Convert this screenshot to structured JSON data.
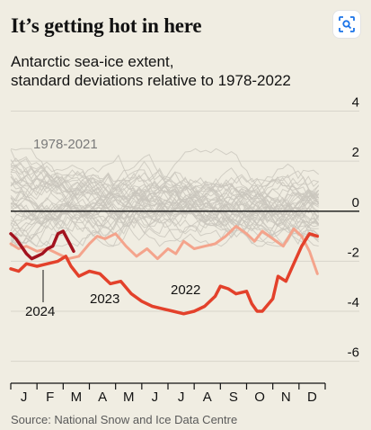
{
  "header": {
    "title": "It’s getting hot in here",
    "subtitle_line1": "Antarctic sea-ice extent,",
    "subtitle_line2": "standard deviations relative to 1978-2022"
  },
  "footer": {
    "source": "Source: National Snow and Ice Data Centre"
  },
  "toolbar": {
    "icon": "lens-search-icon"
  },
  "colors": {
    "background": "#f0ede2",
    "history": "#c9c6bd",
    "y2022": "#f4a48c",
    "y2023": "#e3412b",
    "y2024": "#a3131f",
    "zero_line": "#121212"
  },
  "chart_data": {
    "type": "line",
    "title": "It’s getting hot in here",
    "subtitle": "Antarctic sea-ice extent, standard deviations relative to 1978-2022",
    "ylim": [
      -6.3,
      4.2
    ],
    "xlim": [
      0,
      12
    ],
    "y_ticks": [
      4,
      2,
      0,
      -2,
      -4,
      -6
    ],
    "y_tick_labels": [
      "4",
      "2",
      "0",
      "-2",
      "-4",
      "-6"
    ],
    "x_tick_labels": [
      "J",
      "F",
      "M",
      "A",
      "M",
      "J",
      "J",
      "A",
      "S",
      "O",
      "N",
      "D"
    ],
    "zero_line": true,
    "annotations": [
      {
        "text": "1978-2021",
        "series": "1978-2021"
      },
      {
        "text": "2022",
        "series": "2022"
      },
      {
        "text": "2023",
        "series": "2023"
      },
      {
        "text": "2024",
        "series": "2024"
      }
    ],
    "series": [
      {
        "name": "2022",
        "x": [
          0.0,
          0.3,
          0.6,
          1.0,
          1.4,
          1.8,
          2.2,
          2.6,
          3.0,
          3.3,
          3.6,
          4.0,
          4.4,
          4.8,
          5.2,
          5.6,
          6.0,
          6.3,
          6.6,
          7.0,
          7.4,
          7.8,
          8.2,
          8.6,
          9.0,
          9.3,
          9.6,
          10.0,
          10.4,
          10.8,
          11.1,
          11.4,
          11.7
        ],
        "y": [
          -1.3,
          -1.5,
          -1.4,
          -1.6,
          -1.5,
          -1.7,
          -1.9,
          -1.8,
          -1.3,
          -1.0,
          -1.1,
          -0.9,
          -1.4,
          -1.8,
          -1.5,
          -1.9,
          -1.5,
          -1.7,
          -1.2,
          -1.5,
          -1.4,
          -1.3,
          -1.0,
          -0.6,
          -0.9,
          -1.2,
          -0.8,
          -1.1,
          -1.4,
          -0.7,
          -1.0,
          -1.6,
          -2.5
        ]
      },
      {
        "name": "2023",
        "x": [
          0.0,
          0.3,
          0.6,
          1.0,
          1.4,
          1.8,
          2.1,
          2.3,
          2.6,
          3.0,
          3.4,
          3.8,
          4.2,
          4.6,
          5.0,
          5.4,
          5.8,
          6.2,
          6.6,
          7.0,
          7.4,
          7.8,
          8.0,
          8.3,
          8.6,
          9.0,
          9.2,
          9.4,
          9.6,
          10.0,
          10.2,
          10.5,
          10.8,
          11.1,
          11.4,
          11.7
        ],
        "y": [
          -2.3,
          -2.4,
          -2.1,
          -2.2,
          -2.1,
          -2.0,
          -1.8,
          -2.2,
          -2.6,
          -2.4,
          -2.5,
          -2.9,
          -2.8,
          -3.3,
          -3.6,
          -3.8,
          -3.9,
          -4.0,
          -4.1,
          -4.0,
          -3.8,
          -3.4,
          -3.0,
          -3.1,
          -3.3,
          -3.2,
          -3.7,
          -4.0,
          -4.0,
          -3.5,
          -2.6,
          -2.8,
          -2.1,
          -1.4,
          -0.9,
          -1.0
        ]
      },
      {
        "name": "2024",
        "x": [
          0.0,
          0.2,
          0.4,
          0.6,
          0.8,
          1.0,
          1.2,
          1.4,
          1.6,
          1.8,
          2.0,
          2.2,
          2.4
        ],
        "y": [
          -0.9,
          -1.1,
          -1.4,
          -1.7,
          -1.9,
          -1.8,
          -1.7,
          -1.5,
          -1.4,
          -0.9,
          -0.8,
          -1.2,
          -1.6
        ]
      }
    ],
    "background_series": {
      "name": "1978-2021",
      "count": 44,
      "range": [
        -1.4,
        2.5
      ]
    }
  }
}
